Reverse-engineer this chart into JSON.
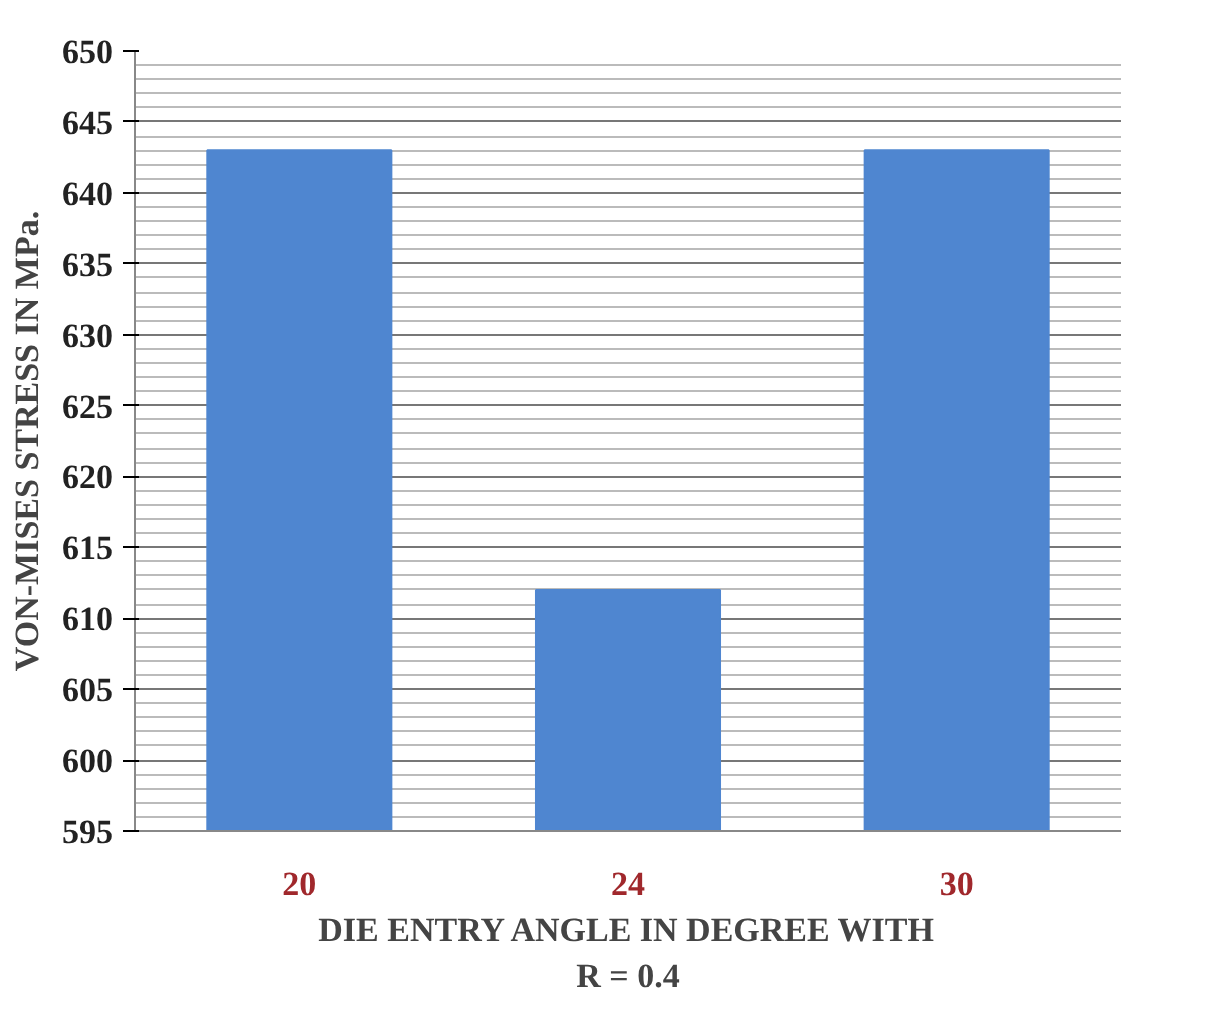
{
  "chart_data": {
    "type": "bar",
    "categories": [
      "20",
      "24",
      "30"
    ],
    "values": [
      643,
      612,
      643
    ],
    "color": "#4f86d0",
    "xlabel": "DIE ENTRY ANGLE IN DEGREE WITH\nR = 0.4",
    "ylabel": "VON-MISES STRESS IN MPa.",
    "ylim": [
      595,
      650
    ],
    "yticks": [
      595,
      600,
      605,
      610,
      615,
      620,
      625,
      630,
      635,
      640,
      645,
      650
    ],
    "grid": "y"
  }
}
